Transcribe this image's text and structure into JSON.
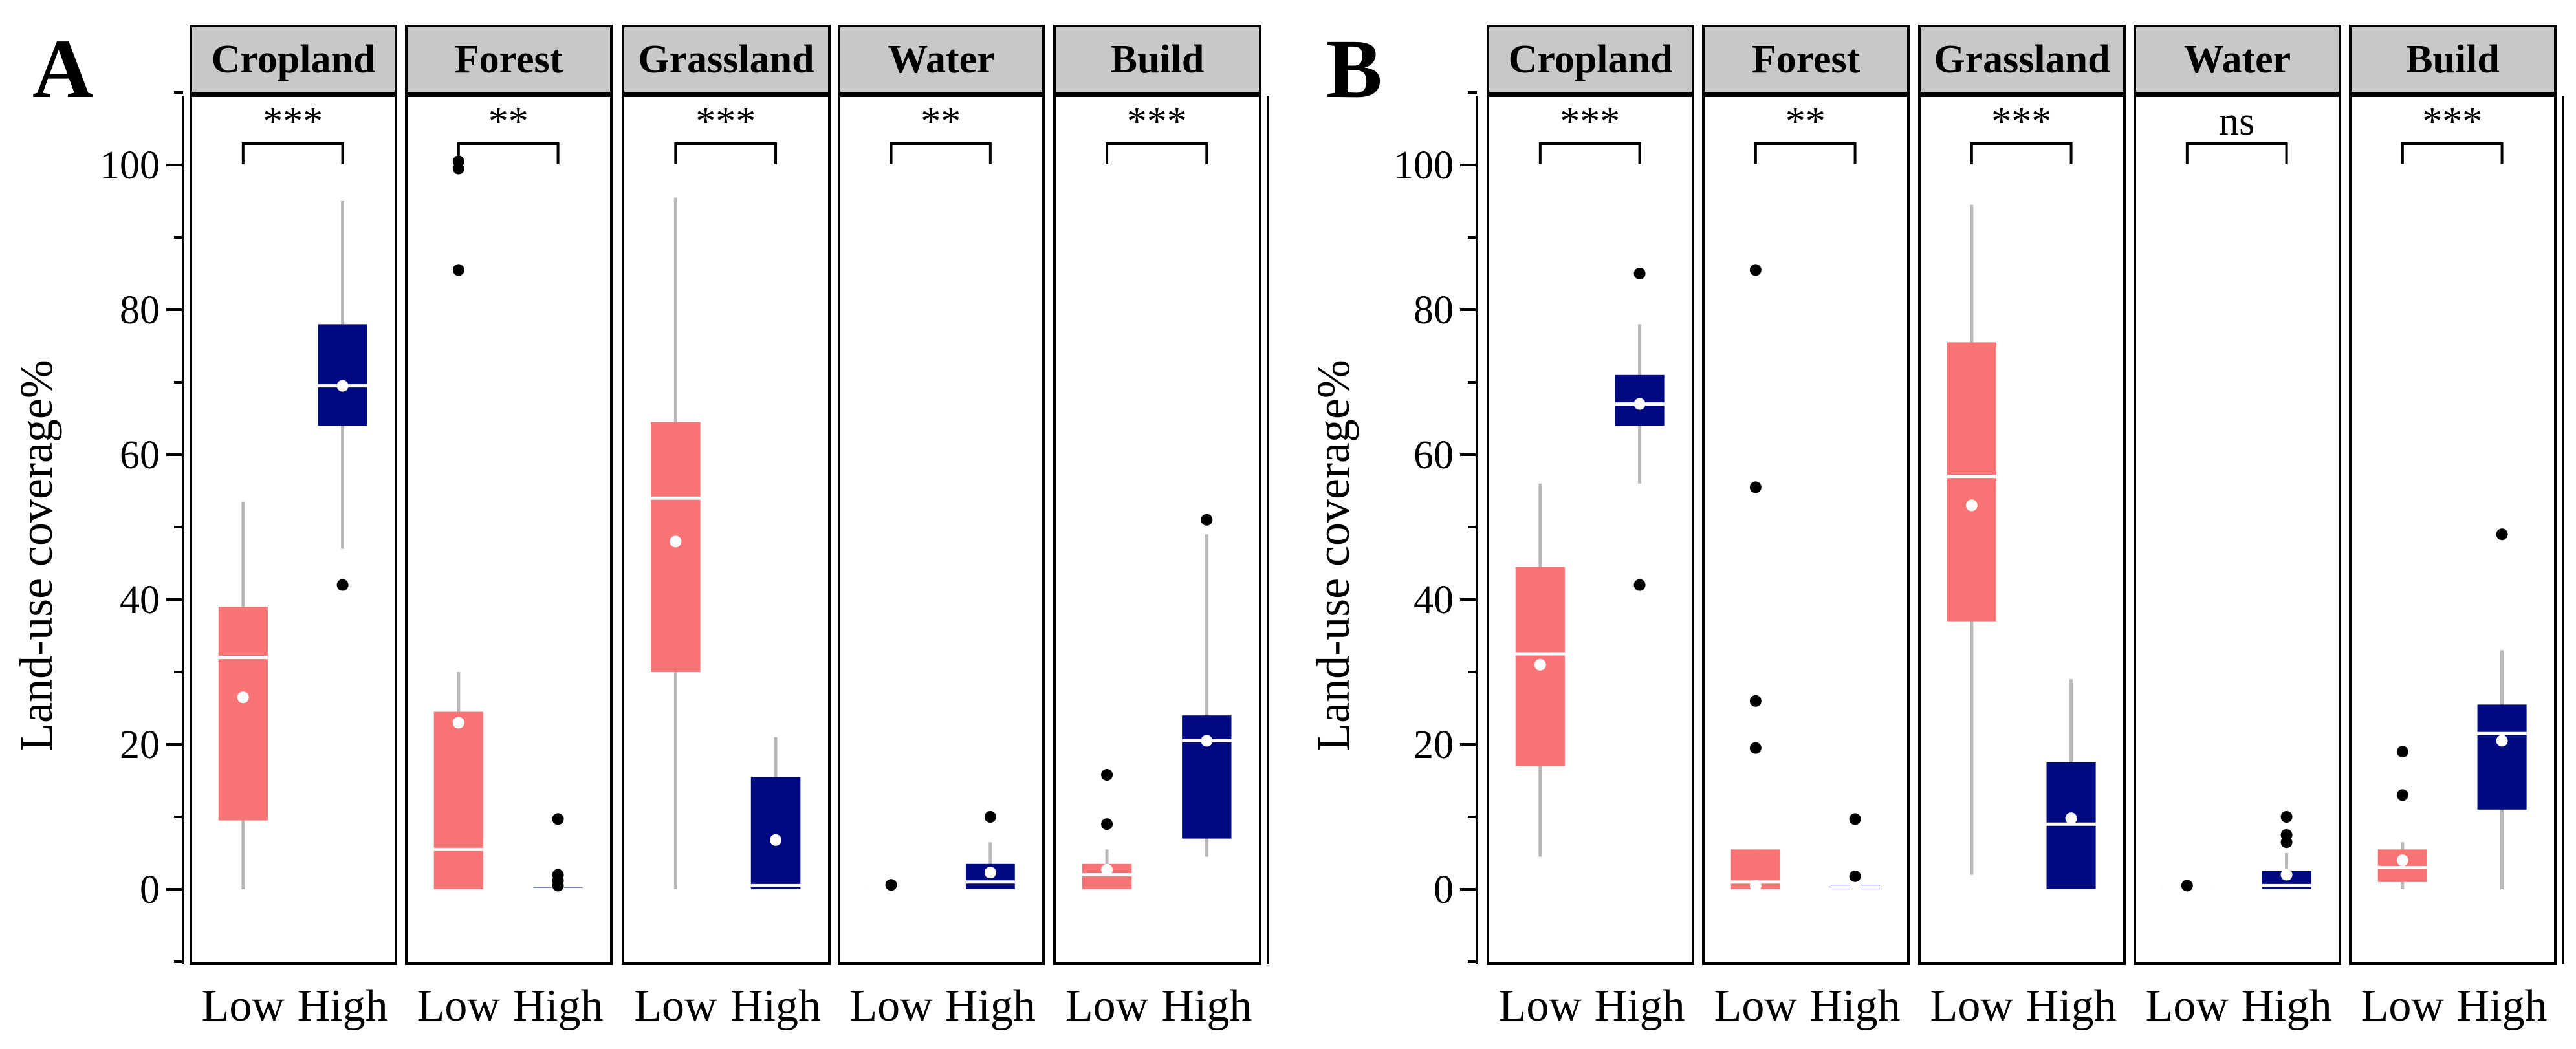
{
  "colors": {
    "low": "#f87373",
    "high": "#000a80",
    "whisker": "#b8b8b8",
    "strip": "#c8c8c8",
    "outlier": "#000000",
    "median": "#ffffff"
  },
  "chart_data": [
    {
      "type": "box",
      "panel": "A",
      "ylabel": "Land-use coverage%",
      "ylim": [
        -10,
        110
      ],
      "yticks": [
        0,
        20,
        40,
        60,
        80,
        100
      ],
      "groups": [
        "Low",
        "High"
      ],
      "facets": [
        {
          "name": "Cropland",
          "sig": "***",
          "boxes": [
            {
              "group": "Low",
              "min": 0,
              "q1": 9.5,
              "median": 32,
              "q3": 39,
              "max": 53.5,
              "mean": 26.5,
              "outliers": []
            },
            {
              "group": "High",
              "min": 47,
              "q1": 64,
              "median": 69.5,
              "q3": 78,
              "max": 95,
              "mean": 69.5,
              "outliers": [
                42
              ]
            }
          ]
        },
        {
          "name": "Forest",
          "sig": "**",
          "boxes": [
            {
              "group": "Low",
              "min": 0,
              "q1": 0,
              "median": 5.5,
              "q3": 24.5,
              "max": 30,
              "mean": 23,
              "outliers": [
                85.5,
                99.5,
                100.5
              ]
            },
            {
              "group": "High",
              "min": 0,
              "q1": 0,
              "median": 0,
              "q3": 0.3,
              "max": 0.3,
              "mean": 0.2,
              "outliers": [
                0.5,
                1.2,
                2,
                9.7
              ]
            }
          ]
        },
        {
          "name": "Grassland",
          "sig": "***",
          "boxes": [
            {
              "group": "Low",
              "min": 0,
              "q1": 30,
              "median": 54,
              "q3": 64.5,
              "max": 95.5,
              "mean": 48,
              "outliers": []
            },
            {
              "group": "High",
              "min": 0,
              "q1": 0,
              "median": 0.5,
              "q3": 15.5,
              "max": 21,
              "mean": 6.8,
              "outliers": []
            }
          ]
        },
        {
          "name": "Water",
          "sig": "**",
          "boxes": [
            {
              "group": "Low",
              "min": 0,
              "q1": 0,
              "median": 0,
              "q3": 0.2,
              "max": 0.2,
              "mean": 0.2,
              "outliers": [
                0.6
              ]
            },
            {
              "group": "High",
              "min": 0,
              "q1": 0,
              "median": 1,
              "q3": 3.5,
              "max": 6.5,
              "mean": 2.3,
              "outliers": [
                10
              ]
            }
          ]
        },
        {
          "name": "Build",
          "sig": "***",
          "boxes": [
            {
              "group": "Low",
              "min": 0,
              "q1": 0,
              "median": 2,
              "q3": 3.5,
              "max": 5.5,
              "mean": 2.7,
              "outliers": [
                9,
                15.8
              ]
            },
            {
              "group": "High",
              "min": 4.5,
              "q1": 7,
              "median": 20.5,
              "q3": 24,
              "max": 49,
              "mean": 20.5,
              "outliers": [
                51
              ]
            }
          ]
        }
      ]
    },
    {
      "type": "box",
      "panel": "B",
      "ylabel": "Land-use coverage%",
      "ylim": [
        -10,
        110
      ],
      "yticks": [
        0,
        20,
        40,
        60,
        80,
        100
      ],
      "groups": [
        "Low",
        "High"
      ],
      "facets": [
        {
          "name": "Cropland",
          "sig": "***",
          "boxes": [
            {
              "group": "Low",
              "min": 4.5,
              "q1": 17,
              "median": 32.5,
              "q3": 44.5,
              "max": 56,
              "mean": 31,
              "outliers": []
            },
            {
              "group": "High",
              "min": 56,
              "q1": 64,
              "median": 67,
              "q3": 71,
              "max": 78,
              "mean": 67,
              "outliers": [
                42,
                85
              ]
            }
          ]
        },
        {
          "name": "Forest",
          "sig": "**",
          "boxes": [
            {
              "group": "Low",
              "min": 0,
              "q1": 0,
              "median": 1,
              "q3": 5.5,
              "max": 5.5,
              "mean": 0.5,
              "outliers": [
                19.5,
                26,
                55.5,
                85.5
              ]
            },
            {
              "group": "High",
              "min": 0,
              "q1": 0,
              "median": 0.3,
              "q3": 0.6,
              "max": 1,
              "mean": 0.3,
              "outliers": [
                1.8,
                9.7
              ]
            }
          ]
        },
        {
          "name": "Grassland",
          "sig": "***",
          "boxes": [
            {
              "group": "Low",
              "min": 2,
              "q1": 37,
              "median": 57,
              "q3": 75.5,
              "max": 94.5,
              "mean": 53,
              "outliers": []
            },
            {
              "group": "High",
              "min": 0,
              "q1": 0,
              "median": 9,
              "q3": 17.5,
              "max": 29,
              "mean": 9.8,
              "outliers": []
            }
          ]
        },
        {
          "name": "Water",
          "sig": "ns",
          "boxes": [
            {
              "group": "Low",
              "min": 0,
              "q1": 0,
              "median": 0.2,
              "q3": 0.4,
              "max": 0.6,
              "mean": 0.3,
              "outliers": [
                0.5
              ]
            },
            {
              "group": "High",
              "min": 0,
              "q1": 0,
              "median": 0.5,
              "q3": 2.5,
              "max": 5,
              "mean": 2,
              "outliers": [
                6.5,
                7.5,
                10
              ]
            }
          ]
        },
        {
          "name": "Build",
          "sig": "***",
          "boxes": [
            {
              "group": "Low",
              "min": 0,
              "q1": 1,
              "median": 3,
              "q3": 5.5,
              "max": 6.5,
              "mean": 4,
              "outliers": [
                13,
                19
              ]
            },
            {
              "group": "High",
              "min": 0,
              "q1": 11,
              "median": 21.5,
              "q3": 25.5,
              "max": 33,
              "mean": 20.5,
              "outliers": [
                49
              ]
            }
          ]
        }
      ]
    }
  ]
}
